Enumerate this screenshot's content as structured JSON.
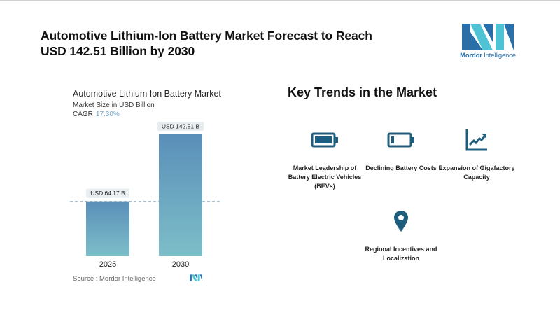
{
  "header": {
    "title": "Automotive Lithium-Ion Battery Market Forecast to Reach USD 142.51 Billion by 2030",
    "logo_text_bold": "Mordor",
    "logo_text_rest": " Intelligence"
  },
  "chart_section": {
    "title": "Automotive Lithium Ion Battery Market",
    "subtitle": "Market Size in USD Billion",
    "cagr_label": "CAGR",
    "cagr_value": "17.30%",
    "source": "Source :  Mordor Intelligence"
  },
  "chart_data": {
    "type": "bar",
    "title": "Automotive Lithium Ion Battery Market",
    "subtitle": "Market Size in USD Billion",
    "categories": [
      "2025",
      "2030"
    ],
    "values": [
      64.17,
      142.51
    ],
    "data_labels": [
      "USD 64.17 B",
      "USD 142.51 B"
    ],
    "xlabel": "",
    "ylabel": "Market Size in USD Billion",
    "ylim": [
      0,
      150
    ],
    "grid": false,
    "reference_line": 64.17,
    "colors": {
      "bar_top": "#5a8fb9",
      "bar_bottom": "#7dbec8",
      "label_bg": "#e8edf0"
    }
  },
  "trends": {
    "title": "Key Trends in the Market",
    "items": [
      {
        "icon": "battery-full-icon",
        "label": "Market Leadership of Battery Electric Vehicles (BEVs)"
      },
      {
        "icon": "battery-low-icon",
        "label": "Declining Battery Costs"
      },
      {
        "icon": "growth-chart-icon",
        "label": "Expansion of Gigafactory Capacity"
      },
      {
        "icon": "location-pin-icon",
        "label": "Regional Incentives and Localization"
      }
    ]
  },
  "colors": {
    "icon": "#1f5d7f",
    "logo_dark": "#2a6fa8",
    "logo_light": "#4fc3d6"
  }
}
